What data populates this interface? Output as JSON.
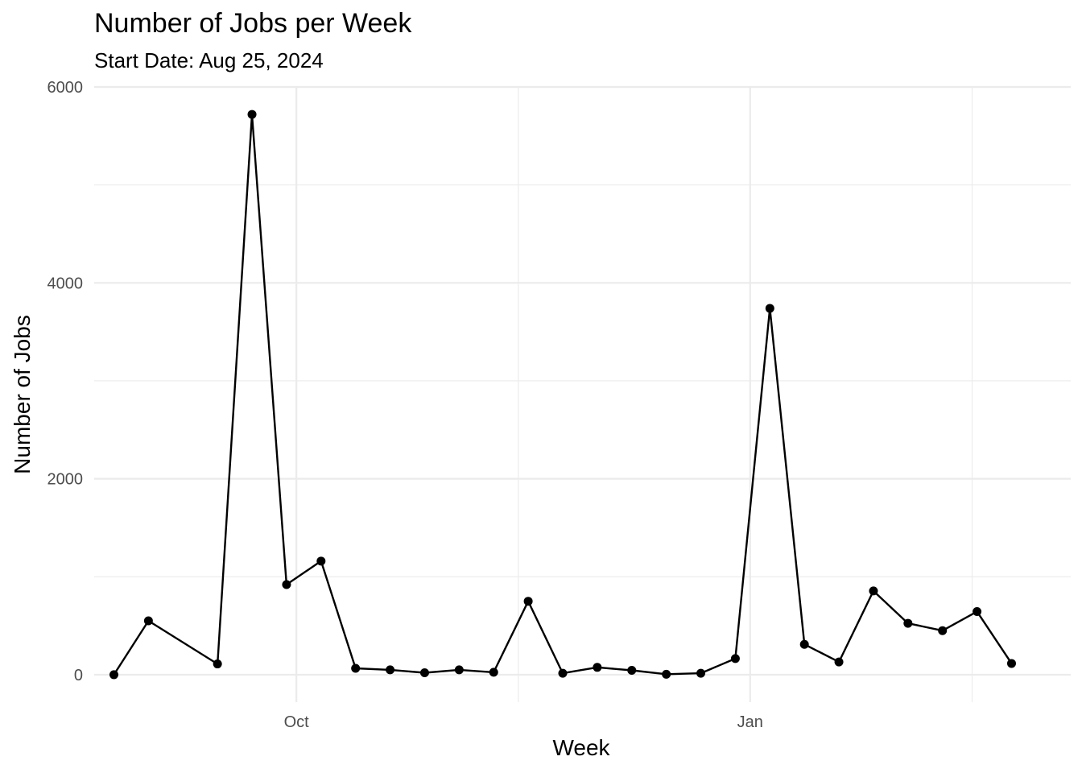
{
  "chart_data": {
    "type": "line",
    "title": "Number of Jobs per Week",
    "subtitle": "Start Date: Aug 25, 2024",
    "xlabel": "Week",
    "ylabel": "Number of Jobs",
    "x_tick_labels": [
      {
        "date": "2024-10-01",
        "label": "Oct"
      },
      {
        "date": "2025-01-01",
        "label": "Jan"
      }
    ],
    "x_minor_grid_dates": [
      "2024-11-15",
      "2025-02-15"
    ],
    "xlim": [
      "2024-08-21",
      "2025-03-07"
    ],
    "y_ticks": [
      0,
      2000,
      4000,
      6000
    ],
    "ylim": [
      -280,
      6000
    ],
    "grid": true,
    "x": [
      "2024-08-25",
      "2024-09-01",
      "2024-09-15",
      "2024-09-22",
      "2024-09-29",
      "2024-10-06",
      "2024-10-13",
      "2024-10-20",
      "2024-10-27",
      "2024-11-03",
      "2024-11-10",
      "2024-11-17",
      "2024-11-24",
      "2024-12-01",
      "2024-12-08",
      "2024-12-15",
      "2024-12-22",
      "2024-12-29",
      "2025-01-05",
      "2025-01-12",
      "2025-01-19",
      "2025-01-26",
      "2025-02-02",
      "2025-02-09",
      "2025-02-16",
      "2025-02-23"
    ],
    "series": [
      {
        "color": "#000000",
        "values": [
          0,
          550,
          110,
          5720,
          920,
          1160,
          65,
          50,
          20,
          50,
          25,
          750,
          15,
          75,
          45,
          5,
          15,
          165,
          3740,
          310,
          130,
          855,
          525,
          450,
          645,
          115
        ]
      }
    ]
  }
}
